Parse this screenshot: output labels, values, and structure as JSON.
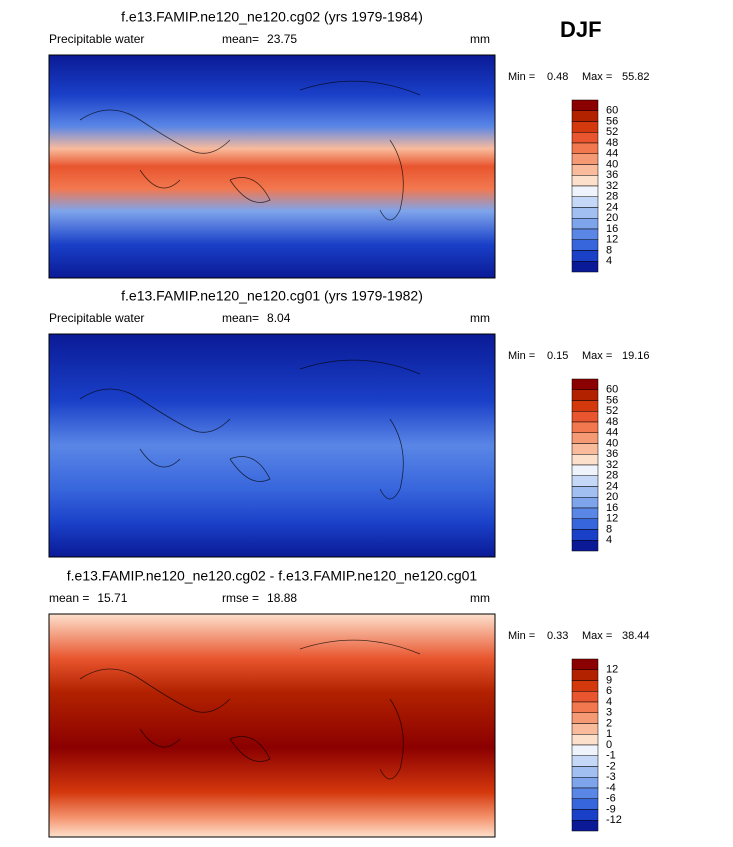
{
  "season": "DJF",
  "panels": [
    {
      "title": "f.e13.FAMIP.ne120_ne120.cg02 (yrs 1979-1984)",
      "variable": "Precipitable water",
      "stats": [
        {
          "label": "mean=",
          "value": 23.75
        }
      ],
      "units": "mm",
      "min_label": "Min =",
      "min": 0.48,
      "max_label": "Max =",
      "max": 55.82,
      "colorbar": {
        "levels": [
          60,
          56,
          52,
          48,
          44,
          40,
          36,
          32,
          28,
          24,
          20,
          16,
          12,
          8,
          4
        ],
        "colors": [
          "#8b0000",
          "#b22200",
          "#d4380d",
          "#e8552e",
          "#f2784f",
          "#f69a75",
          "#f9bb9c",
          "#fde0cc",
          "#eef3fc",
          "#c6d8f7",
          "#a2bff2",
          "#7ea4ec",
          "#5a86e6",
          "#3765dc",
          "#1a40c8",
          "#0a1a96"
        ]
      }
    },
    {
      "title": "f.e13.FAMIP.ne120_ne120.cg01 (yrs 1979-1982)",
      "variable": "Precipitable water",
      "stats": [
        {
          "label": "mean=",
          "value": 8.04
        }
      ],
      "units": "mm",
      "min_label": "Min =",
      "min": 0.15,
      "max_label": "Max =",
      "max": 19.16,
      "colorbar": {
        "levels": [
          60,
          56,
          52,
          48,
          44,
          40,
          36,
          32,
          28,
          24,
          20,
          16,
          12,
          8,
          4
        ],
        "colors": [
          "#8b0000",
          "#b22200",
          "#d4380d",
          "#e8552e",
          "#f2784f",
          "#f69a75",
          "#f9bb9c",
          "#fde0cc",
          "#eef3fc",
          "#c6d8f7",
          "#a2bff2",
          "#7ea4ec",
          "#5a86e6",
          "#3765dc",
          "#1a40c8",
          "#0a1a96"
        ]
      }
    },
    {
      "title": "f.e13.FAMIP.ne120_ne120.cg02 - f.e13.FAMIP.ne120_ne120.cg01",
      "stats": [
        {
          "label": "mean =",
          "value": 15.71
        },
        {
          "label": "rmse =",
          "value": 18.88
        }
      ],
      "units": "mm",
      "min_label": "Min =",
      "min": 0.33,
      "max_label": "Max =",
      "max": 38.44,
      "colorbar": {
        "levels": [
          12,
          9,
          6,
          4,
          3,
          2,
          1,
          0,
          -1,
          -2,
          -3,
          -4,
          -6,
          -9,
          -12
        ],
        "colors": [
          "#8b0000",
          "#b22200",
          "#d4380d",
          "#e8552e",
          "#f2784f",
          "#f69a75",
          "#f9bb9c",
          "#fde0cc",
          "#eef3fc",
          "#c6d8f7",
          "#a2bff2",
          "#7ea4ec",
          "#5a86e6",
          "#3765dc",
          "#1a40c8",
          "#0a1a96"
        ]
      }
    }
  ]
}
